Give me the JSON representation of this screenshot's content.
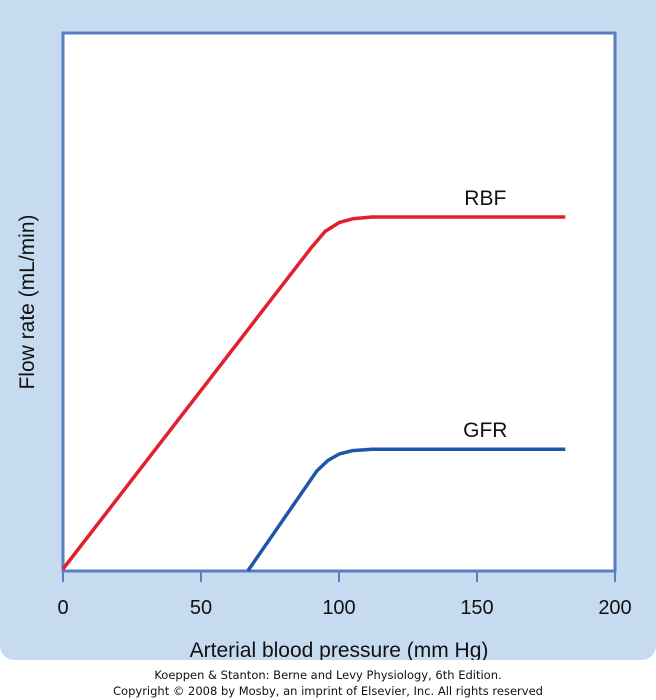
{
  "panel_color": "#c6dbf0",
  "plot_background": "#ffffff",
  "frame_color": "#5b7ec2",
  "chart_data": {
    "type": "line",
    "xlabel": "Arterial blood pressure (mm Hg)",
    "ylabel": "Flow rate (mL/min)",
    "xlim": [
      0,
      200
    ],
    "ylim": [
      0,
      100
    ],
    "x_ticks": [
      0,
      50,
      100,
      150,
      200
    ],
    "x_tick_labels": [
      "0",
      "50",
      "100",
      "150",
      "200"
    ],
    "y_ticks": [],
    "grid": false,
    "series": [
      {
        "name": "RBF",
        "color": "#e0202e",
        "x": [
          0,
          90,
          95,
          100,
          105,
          112,
          182
        ],
        "y": [
          0,
          91.8,
          96.4,
          98.9,
          100,
          100.5,
          100.5
        ]
      },
      {
        "name": "GFR",
        "color": "#1f57a8",
        "x": [
          67,
          92,
          96,
          100,
          105,
          112,
          182
        ],
        "y": [
          -0.5,
          28,
          31,
          32.8,
          33.8,
          34.2,
          34.2
        ]
      }
    ]
  },
  "credit": {
    "line1": "Koeppen & Stanton: Berne and Levy Physiology, 6th Edition.",
    "line2": "Copyright © 2008 by Mosby, an imprint of Elsevier, Inc. All rights reserved"
  }
}
